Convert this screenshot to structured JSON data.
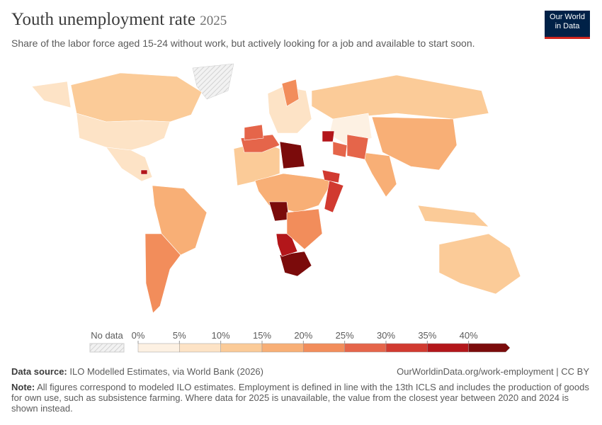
{
  "chart_data": {
    "type": "choropleth",
    "title": "Youth unemployment rate",
    "year": "2025",
    "subtitle": "Share of the labor force aged 15-24 without work, but actively looking for a job and available to start soon.",
    "values": [
      12,
      9,
      6,
      5,
      16,
      23,
      7,
      10,
      4,
      17,
      17,
      11,
      10,
      15,
      42,
      44,
      38,
      38,
      41,
      28,
      27,
      33,
      25,
      35,
      33,
      29,
      24,
      21,
      14
    ],
    "no_data_label": "No data",
    "legend_colors": [
      "#fdf1e3",
      "#fde3c6",
      "#fbcb98",
      "#f8af76",
      "#f28d5b",
      "#e5654a",
      "#d13a30",
      "#b3161a",
      "#7b0b0b"
    ],
    "legend_ticks": [
      {
        "value": 0,
        "label": "0%"
      },
      {
        "value": 5,
        "label": "5%"
      },
      {
        "value": 10,
        "label": "10%"
      },
      {
        "value": 15,
        "label": "15%"
      },
      {
        "value": 20,
        "label": "20%"
      },
      {
        "value": 25,
        "label": "25%"
      },
      {
        "value": 30,
        "label": "30%"
      },
      {
        "value": 35,
        "label": "35%"
      },
      {
        "value": 40,
        "label": "40%"
      }
    ],
    "legend_lim": [
      0,
      45
    ],
    "source_label": "Data source:",
    "source": "ILO Modelled Estimates, via World Bank (2026)",
    "url": "OurWorldinData.org/work-employment | CC BY",
    "note_label": "Note:",
    "note": "All figures correspond to modeled ILO estimates. Employment is defined in line with the 13th ICLS and includes the production of goods for own use, such as subsistence farming. Where data for 2025 is unavailable, the value from the closest year between 2020 and 2024 is shown instead.",
    "logo_line1": "Our World",
    "logo_line2": "in Data"
  }
}
